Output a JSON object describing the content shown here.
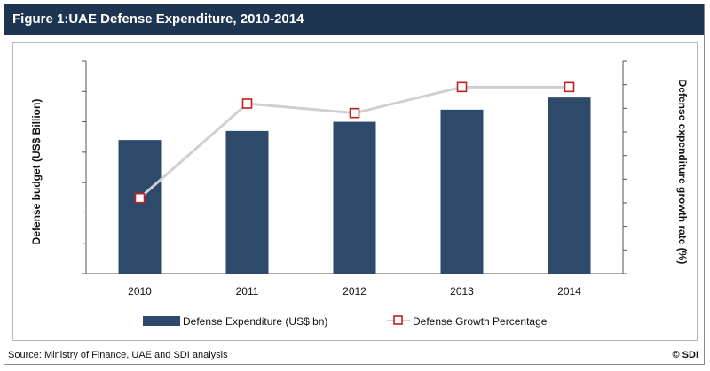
{
  "header": {
    "title": "Figure 1:UAE Defense Expenditure, 2010-2014"
  },
  "footer": {
    "source": "Source: Ministry of Finance, UAE and SDI analysis",
    "copyright": "© SDI"
  },
  "colors": {
    "title_bg": "#1e3552",
    "bar": "#2e4a6b",
    "line": "#d0d0d0",
    "marker_edge": "#c0201e"
  },
  "chart_data": {
    "type": "bar",
    "categories": [
      "2010",
      "2011",
      "2012",
      "2013",
      "2014"
    ],
    "series": [
      {
        "name": "Defense Expenditure (US$ bn)",
        "type": "bar",
        "axis": "left",
        "values": [
          4.4,
          4.7,
          5.0,
          5.4,
          5.8
        ]
      },
      {
        "name": "Defense Growth Percentage",
        "type": "line",
        "axis": "right",
        "values": [
          3.2,
          7.2,
          6.8,
          7.9,
          7.9
        ]
      }
    ],
    "ylabel": "Defense budget (US$ Billion)",
    "y2label": "Defense expenditure growth rate (%)",
    "ylim": [
      0,
      7
    ],
    "y2lim": [
      0,
      9
    ],
    "left_ticks": [
      0,
      1,
      2,
      3,
      4,
      5,
      6,
      7
    ],
    "right_ticks": [
      0,
      1,
      2,
      3,
      4,
      5,
      6,
      7,
      8,
      9
    ],
    "tick_labels_shown": false,
    "grid": false,
    "legend": "bottom"
  }
}
